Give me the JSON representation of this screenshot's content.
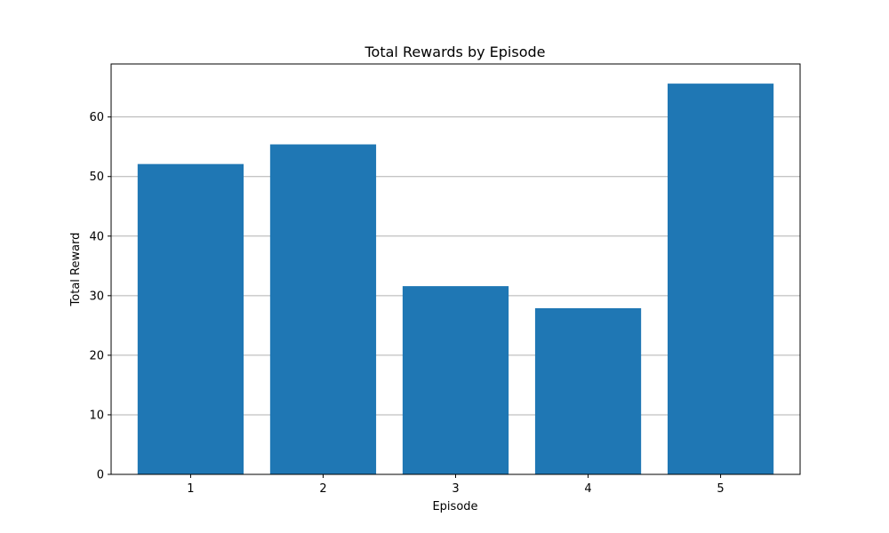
{
  "chart_data": {
    "type": "bar",
    "title": "Total Rewards by Episode",
    "xlabel": "Episode",
    "ylabel": "Total Reward",
    "categories": [
      "1",
      "2",
      "3",
      "4",
      "5"
    ],
    "values": [
      52.1,
      55.4,
      31.6,
      27.9,
      65.6
    ],
    "ylim": [
      0,
      68.9
    ],
    "yticks": [
      0,
      10,
      20,
      30,
      40,
      50,
      60
    ],
    "ytick_labels": [
      "0",
      "10",
      "20",
      "30",
      "40",
      "50",
      "60"
    ],
    "grid": "y",
    "bar_color": "#1f77b4"
  }
}
